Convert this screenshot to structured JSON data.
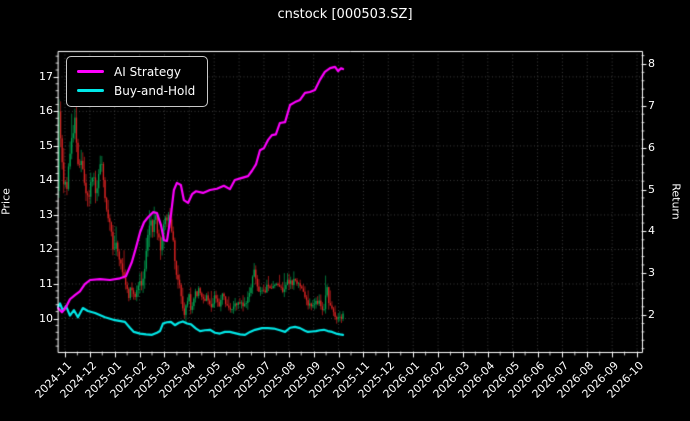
{
  "title": "cnstock [000503.SZ]",
  "legend": {
    "items": [
      {
        "label": "AI Strategy",
        "color": "#ff00ff"
      },
      {
        "label": "Buy-and-Hold",
        "color": "#00e8e8"
      }
    ]
  },
  "chart_data": {
    "type": "mixed",
    "title": "cnstock [000503.SZ]",
    "ylabel_left": "Price",
    "ylabel_right": "Return",
    "grid": "dotted",
    "legend_position": "upper-left",
    "background": "#000000",
    "colors": {
      "text": "#ffffff",
      "spine": "#ffffff",
      "grid": "#4d4d4d",
      "candle_up": "#00a050",
      "candle_down": "#d62222",
      "ai_strategy": "#ff00ff",
      "buy_and_hold": "#00e8e8"
    },
    "x_tick_labels": [
      "2024-11",
      "2024-12",
      "2025-01",
      "2025-02",
      "2025-03",
      "2025-04",
      "2025-05",
      "2025-06",
      "2025-07",
      "2025-08",
      "2025-09",
      "2025-10",
      "2025-11",
      "2025-12",
      "2026-01",
      "2026-02",
      "2026-03",
      "2026-04",
      "2026-05",
      "2026-06",
      "2026-07",
      "2026-08",
      "2026-09",
      "2026-10"
    ],
    "y_ticks_left": [
      10,
      11,
      12,
      13,
      14,
      15,
      16,
      17
    ],
    "y_ticks_right": [
      2,
      3,
      4,
      5,
      6,
      7,
      8
    ],
    "xlim_months": [
      -0.28,
      23.2
    ],
    "ylim_left": [
      9.03,
      17.75
    ],
    "ylim_right": [
      1.12,
      8.31
    ],
    "data_month_range": [
      -0.24,
      11.18
    ],
    "series": [
      {
        "name": "AI Strategy",
        "type": "line",
        "axis": "right",
        "color": "#ff00ff",
        "points": [
          [
            -0.28,
            2.17
          ],
          [
            -0.12,
            2.07
          ],
          [
            0.04,
            2.19
          ],
          [
            0.2,
            2.38
          ],
          [
            0.4,
            2.48
          ],
          [
            0.6,
            2.57
          ],
          [
            0.8,
            2.74
          ],
          [
            1.01,
            2.84
          ],
          [
            1.41,
            2.86
          ],
          [
            1.81,
            2.84
          ],
          [
            2.21,
            2.88
          ],
          [
            2.45,
            2.93
          ],
          [
            2.69,
            3.27
          ],
          [
            2.85,
            3.6
          ],
          [
            3.02,
            3.98
          ],
          [
            3.18,
            4.22
          ],
          [
            3.34,
            4.34
          ],
          [
            3.54,
            4.46
          ],
          [
            3.7,
            4.44
          ],
          [
            3.86,
            4.15
          ],
          [
            3.98,
            3.79
          ],
          [
            4.1,
            3.77
          ],
          [
            4.26,
            4.39
          ],
          [
            4.38,
            4.99
          ],
          [
            4.5,
            5.16
          ],
          [
            4.66,
            5.11
          ],
          [
            4.78,
            4.75
          ],
          [
            4.95,
            4.68
          ],
          [
            5.11,
            4.89
          ],
          [
            5.27,
            4.96
          ],
          [
            5.55,
            4.92
          ],
          [
            5.83,
            4.99
          ],
          [
            6.11,
            5.02
          ],
          [
            6.39,
            5.09
          ],
          [
            6.63,
            5.01
          ],
          [
            6.83,
            5.23
          ],
          [
            7.12,
            5.28
          ],
          [
            7.36,
            5.32
          ],
          [
            7.52,
            5.45
          ],
          [
            7.68,
            5.6
          ],
          [
            7.84,
            5.94
          ],
          [
            8.0,
            5.99
          ],
          [
            8.16,
            6.18
          ],
          [
            8.32,
            6.3
          ],
          [
            8.48,
            6.32
          ],
          [
            8.64,
            6.59
          ],
          [
            8.85,
            6.61
          ],
          [
            9.05,
            7.02
          ],
          [
            9.25,
            7.09
          ],
          [
            9.45,
            7.14
          ],
          [
            9.65,
            7.31
          ],
          [
            9.85,
            7.33
          ],
          [
            10.05,
            7.38
          ],
          [
            10.25,
            7.62
          ],
          [
            10.45,
            7.81
          ],
          [
            10.66,
            7.9
          ],
          [
            10.86,
            7.93
          ],
          [
            10.98,
            7.83
          ],
          [
            11.1,
            7.9
          ],
          [
            11.18,
            7.88
          ]
        ]
      },
      {
        "name": "Buy-and-Hold",
        "type": "line",
        "axis": "right",
        "color": "#00e8e8",
        "points": [
          [
            -0.28,
            2.19
          ],
          [
            -0.2,
            2.28
          ],
          [
            -0.08,
            2.1
          ],
          [
            0.04,
            2.22
          ],
          [
            0.2,
            1.99
          ],
          [
            0.36,
            2.12
          ],
          [
            0.52,
            1.95
          ],
          [
            0.72,
            2.17
          ],
          [
            0.92,
            2.1
          ],
          [
            1.21,
            2.05
          ],
          [
            1.61,
            1.95
          ],
          [
            2.01,
            1.88
          ],
          [
            2.41,
            1.84
          ],
          [
            2.61,
            1.7
          ],
          [
            2.77,
            1.6
          ],
          [
            3.02,
            1.56
          ],
          [
            3.26,
            1.54
          ],
          [
            3.5,
            1.53
          ],
          [
            3.7,
            1.58
          ],
          [
            3.82,
            1.62
          ],
          [
            3.94,
            1.8
          ],
          [
            4.1,
            1.83
          ],
          [
            4.26,
            1.84
          ],
          [
            4.42,
            1.76
          ],
          [
            4.58,
            1.82
          ],
          [
            4.74,
            1.85
          ],
          [
            4.91,
            1.8
          ],
          [
            5.07,
            1.78
          ],
          [
            5.27,
            1.68
          ],
          [
            5.43,
            1.62
          ],
          [
            5.63,
            1.64
          ],
          [
            5.83,
            1.65
          ],
          [
            6.03,
            1.58
          ],
          [
            6.23,
            1.56
          ],
          [
            6.43,
            1.6
          ],
          [
            6.63,
            1.6
          ],
          [
            6.83,
            1.57
          ],
          [
            7.04,
            1.54
          ],
          [
            7.24,
            1.53
          ],
          [
            7.44,
            1.6
          ],
          [
            7.64,
            1.65
          ],
          [
            7.92,
            1.69
          ],
          [
            8.16,
            1.69
          ],
          [
            8.4,
            1.68
          ],
          [
            8.64,
            1.64
          ],
          [
            8.85,
            1.6
          ],
          [
            9.05,
            1.7
          ],
          [
            9.25,
            1.72
          ],
          [
            9.45,
            1.69
          ],
          [
            9.65,
            1.63
          ],
          [
            9.77,
            1.6
          ],
          [
            9.93,
            1.61
          ],
          [
            10.09,
            1.62
          ],
          [
            10.25,
            1.64
          ],
          [
            10.41,
            1.65
          ],
          [
            10.57,
            1.62
          ],
          [
            10.74,
            1.6
          ],
          [
            10.9,
            1.56
          ],
          [
            11.06,
            1.54
          ],
          [
            11.18,
            1.53
          ]
        ]
      },
      {
        "name": "Price Candles",
        "type": "candlestick",
        "axis": "left",
        "up_color": "#00a050",
        "down_color": "#d62222",
        "candle_count": 180,
        "seed": 1337,
        "close_path": [
          [
            -0.24,
            16.0
          ],
          [
            -0.16,
            15.1
          ],
          [
            -0.08,
            14.1
          ],
          [
            0.0,
            13.7
          ],
          [
            0.08,
            13.9
          ],
          [
            0.16,
            14.4
          ],
          [
            0.24,
            14.9
          ],
          [
            0.32,
            15.4
          ],
          [
            0.4,
            15.8
          ],
          [
            0.48,
            14.9
          ],
          [
            0.56,
            14.5
          ],
          [
            0.64,
            14.8
          ],
          [
            0.72,
            14.3
          ],
          [
            0.8,
            14.0
          ],
          [
            0.88,
            13.5
          ],
          [
            0.96,
            13.4
          ],
          [
            1.05,
            13.9
          ],
          [
            1.13,
            14.2
          ],
          [
            1.21,
            13.8
          ],
          [
            1.29,
            13.6
          ],
          [
            1.37,
            14.3
          ],
          [
            1.45,
            14.6
          ],
          [
            1.53,
            14.1
          ],
          [
            1.61,
            13.5
          ],
          [
            1.69,
            13.1
          ],
          [
            1.77,
            12.8
          ],
          [
            1.85,
            12.5
          ],
          [
            1.93,
            12.1
          ],
          [
            2.01,
            12.0
          ],
          [
            2.09,
            12.2
          ],
          [
            2.17,
            11.8
          ],
          [
            2.25,
            11.5
          ],
          [
            2.33,
            11.2
          ],
          [
            2.41,
            11.1
          ],
          [
            2.49,
            10.9
          ],
          [
            2.57,
            10.7
          ],
          [
            2.65,
            11.0
          ],
          [
            2.73,
            10.8
          ],
          [
            2.81,
            10.6
          ],
          [
            2.9,
            10.8
          ],
          [
            2.98,
            10.9
          ],
          [
            3.06,
            11.0
          ],
          [
            3.14,
            11.2
          ],
          [
            3.22,
            11.7
          ],
          [
            3.3,
            12.2
          ],
          [
            3.38,
            12.5
          ],
          [
            3.46,
            12.8
          ],
          [
            3.54,
            12.6
          ],
          [
            3.62,
            13.0
          ],
          [
            3.7,
            12.7
          ],
          [
            3.78,
            12.3
          ],
          [
            3.86,
            12.0
          ],
          [
            3.94,
            12.5
          ],
          [
            4.02,
            13.0
          ],
          [
            4.1,
            12.7
          ],
          [
            4.18,
            13.1
          ],
          [
            4.26,
            12.8
          ],
          [
            4.34,
            12.3
          ],
          [
            4.42,
            11.8
          ],
          [
            4.5,
            11.3
          ],
          [
            4.58,
            11.0
          ],
          [
            4.66,
            10.7
          ],
          [
            4.74,
            10.3
          ],
          [
            4.82,
            10.1
          ],
          [
            4.91,
            10.4
          ],
          [
            4.99,
            10.6
          ],
          [
            5.07,
            10.3
          ],
          [
            5.15,
            10.5
          ],
          [
            5.23,
            10.7
          ],
          [
            5.39,
            10.8
          ],
          [
            5.55,
            10.6
          ],
          [
            5.71,
            10.6
          ],
          [
            5.87,
            10.3
          ],
          [
            6.03,
            10.7
          ],
          [
            6.19,
            10.4
          ],
          [
            6.35,
            10.7
          ],
          [
            6.51,
            10.4
          ],
          [
            6.67,
            10.3
          ],
          [
            6.83,
            10.4
          ],
          [
            7.0,
            10.5
          ],
          [
            7.16,
            10.3
          ],
          [
            7.32,
            10.6
          ],
          [
            7.48,
            11.0
          ],
          [
            7.64,
            11.4
          ],
          [
            7.72,
            11.0
          ],
          [
            7.8,
            10.8
          ],
          [
            7.96,
            10.7
          ],
          [
            8.12,
            10.9
          ],
          [
            8.28,
            10.8
          ],
          [
            8.44,
            10.9
          ],
          [
            8.6,
            11.0
          ],
          [
            8.77,
            10.8
          ],
          [
            8.93,
            11.1
          ],
          [
            9.09,
            11.0
          ],
          [
            9.25,
            11.2
          ],
          [
            9.41,
            11.0
          ],
          [
            9.57,
            10.9
          ],
          [
            9.73,
            10.5
          ],
          [
            9.89,
            10.3
          ],
          [
            10.05,
            10.4
          ],
          [
            10.21,
            10.5
          ],
          [
            10.37,
            10.2
          ],
          [
            10.53,
            10.9
          ],
          [
            10.61,
            10.5
          ],
          [
            10.78,
            10.2
          ],
          [
            10.94,
            10.0
          ],
          [
            11.1,
            10.0
          ],
          [
            11.18,
            10.1
          ]
        ],
        "volatility_path": [
          [
            -0.24,
            0.6
          ],
          [
            0.4,
            0.5
          ],
          [
            1.2,
            0.45
          ],
          [
            2.0,
            0.3
          ],
          [
            2.8,
            0.25
          ],
          [
            3.3,
            0.45
          ],
          [
            4.3,
            0.4
          ],
          [
            4.9,
            0.3
          ],
          [
            5.5,
            0.2
          ],
          [
            6.8,
            0.18
          ],
          [
            7.6,
            0.3
          ],
          [
            8.2,
            0.18
          ],
          [
            9.2,
            0.25
          ],
          [
            9.9,
            0.18
          ],
          [
            10.5,
            0.3
          ],
          [
            11.18,
            0.15
          ]
        ]
      }
    ]
  }
}
